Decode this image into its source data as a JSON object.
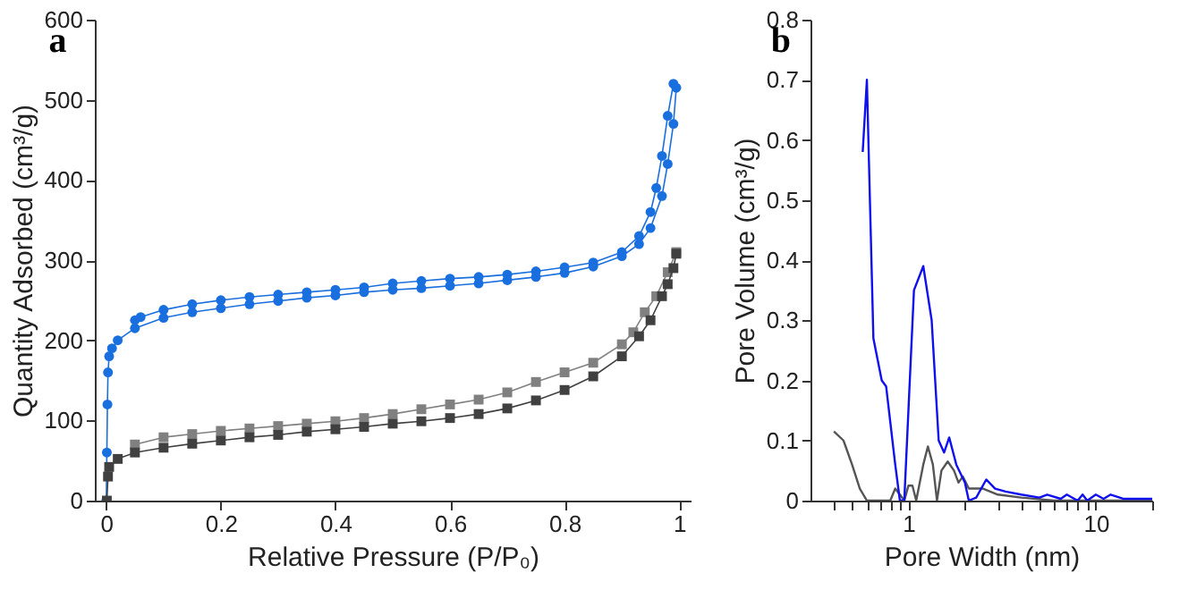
{
  "chart_data": [
    {
      "type": "line",
      "title": "a",
      "xlabel": "Relative Pressure (P/P₀)",
      "ylabel": "Quantity Adsorbed (cm³/g)",
      "xlim": [
        -0.02,
        1.02
      ],
      "ylim": [
        0,
        600
      ],
      "xticks": [
        0,
        0.2,
        0.4,
        0.6,
        0.8,
        1
      ],
      "yticks": [
        0,
        100,
        200,
        300,
        400,
        500,
        600
      ],
      "grid": false,
      "series": [
        {
          "color": "#1a6fdf",
          "marker": "circle",
          "x": [
            0.05,
            0.06,
            0.1,
            0.15,
            0.2,
            0.25,
            0.3,
            0.35,
            0.4,
            0.45,
            0.5,
            0.55,
            0.6,
            0.65,
            0.7,
            0.75,
            0.8,
            0.85,
            0.9,
            0.93,
            0.95,
            0.96,
            0.97,
            0.98,
            0.99
          ],
          "values": [
            225,
            229,
            238,
            245,
            250,
            254,
            257,
            260,
            263,
            266,
            271,
            274,
            277,
            279,
            282,
            286,
            291,
            297,
            310,
            330,
            360,
            390,
            430,
            480,
            520
          ]
        },
        {
          "color": "#1a6fdf",
          "marker": "circle",
          "x": [
            0,
            0.001,
            0.002,
            0.003,
            0.005,
            0.01,
            0.02,
            0.05,
            0.1,
            0.15,
            0.2,
            0.25,
            0.3,
            0.35,
            0.4,
            0.45,
            0.5,
            0.55,
            0.6,
            0.65,
            0.7,
            0.75,
            0.8,
            0.85,
            0.9,
            0.93,
            0.95,
            0.97,
            0.98,
            0.99,
            0.995
          ],
          "values": [
            0,
            60,
            120,
            160,
            180,
            190,
            200,
            215,
            228,
            235,
            240,
            245,
            249,
            253,
            256,
            260,
            263,
            265,
            268,
            271,
            275,
            279,
            284,
            292,
            305,
            320,
            340,
            380,
            420,
            470,
            515
          ]
        },
        {
          "color": "#808080",
          "marker": "square",
          "x": [
            0.05,
            0.1,
            0.15,
            0.2,
            0.25,
            0.3,
            0.35,
            0.4,
            0.45,
            0.5,
            0.55,
            0.6,
            0.65,
            0.7,
            0.75,
            0.8,
            0.85,
            0.9,
            0.92,
            0.94,
            0.96,
            0.98,
            0.995
          ],
          "values": [
            70,
            79,
            83,
            87,
            90,
            93,
            96,
            99,
            103,
            108,
            114,
            120,
            126,
            135,
            148,
            160,
            172,
            195,
            210,
            235,
            255,
            285,
            310
          ]
        },
        {
          "color": "#404040",
          "marker": "square",
          "x": [
            0.001,
            0.003,
            0.005,
            0.02,
            0.05,
            0.1,
            0.15,
            0.2,
            0.25,
            0.3,
            0.35,
            0.4,
            0.45,
            0.5,
            0.55,
            0.6,
            0.65,
            0.7,
            0.75,
            0.8,
            0.85,
            0.9,
            0.93,
            0.95,
            0.97,
            0.98,
            0.99,
            0.995
          ],
          "values": [
            0,
            30,
            42,
            52,
            60,
            66,
            71,
            75,
            79,
            82,
            86,
            89,
            92,
            96,
            99,
            103,
            108,
            115,
            125,
            138,
            155,
            180,
            205,
            225,
            255,
            270,
            290,
            308
          ]
        }
      ]
    },
    {
      "type": "line",
      "title": "b",
      "xlabel": "Pore Width (nm)",
      "ylabel": "Pore Volume (cm³/g)",
      "log": "x",
      "xlim": [
        0.3,
        20
      ],
      "ylim": [
        0,
        0.8
      ],
      "xticks": [
        {
          "value": 0.4,
          "label": null
        },
        {
          "value": 0.5,
          "label": null
        },
        {
          "value": 0.6,
          "label": null
        },
        {
          "value": 0.7,
          "label": null
        },
        {
          "value": 0.8,
          "label": null
        },
        {
          "value": 0.9,
          "label": null
        },
        1,
        {
          "value": 2,
          "label": null
        },
        {
          "value": 3,
          "label": null
        },
        {
          "value": 4,
          "label": null
        },
        {
          "value": 5,
          "label": null
        },
        {
          "value": 6,
          "label": null
        },
        {
          "value": 7,
          "label": null
        },
        {
          "value": 8,
          "label": null
        },
        {
          "value": 9,
          "label": null
        },
        10,
        {
          "value": 20,
          "label": null
        }
      ],
      "yticks": [
        0,
        0.1,
        0.2,
        0.3,
        0.4,
        0.5,
        0.6,
        0.7,
        0.8
      ],
      "grid": false,
      "series": [
        {
          "color": "#555555",
          "x": [
            0.4,
            0.45,
            0.5,
            0.55,
            0.6,
            0.8,
            0.85,
            0.9,
            0.95,
            1.0,
            1.05,
            1.1,
            1.2,
            1.27,
            1.35,
            1.42,
            1.5,
            1.62,
            1.75,
            1.85,
            1.95,
            2.1,
            2.5,
            3,
            4,
            6,
            10,
            20
          ],
          "values": [
            0.115,
            0.1,
            0.06,
            0.02,
            0,
            0,
            0.02,
            0.01,
            0,
            0.025,
            0.025,
            0,
            0.06,
            0.09,
            0.06,
            0,
            0.05,
            0.065,
            0.05,
            0.03,
            0.04,
            0.02,
            0.02,
            0.01,
            0.005,
            0,
            0,
            0
          ]
        },
        {
          "color": "#1010ee",
          "x": [
            0.57,
            0.6,
            0.65,
            0.72,
            0.76,
            0.85,
            0.9,
            0.95,
            1.07,
            1.2,
            1.33,
            1.45,
            1.55,
            1.65,
            1.8,
            2.0,
            2.1,
            2.3,
            2.6,
            2.9,
            3.3,
            4,
            5,
            5.5,
            6.5,
            7,
            8,
            8.5,
            9,
            10,
            11,
            12,
            14,
            20
          ],
          "values": [
            0.58,
            0.7,
            0.27,
            0.2,
            0.19,
            0.06,
            0,
            0,
            0.35,
            0.39,
            0.3,
            0.1,
            0.08,
            0.105,
            0.06,
            0.03,
            0,
            0.005,
            0.035,
            0.02,
            0.015,
            0.01,
            0.005,
            0.01,
            0.003,
            0.01,
            0,
            0.01,
            0,
            0.01,
            0.003,
            0.01,
            0.003,
            0.003
          ]
        }
      ]
    }
  ]
}
